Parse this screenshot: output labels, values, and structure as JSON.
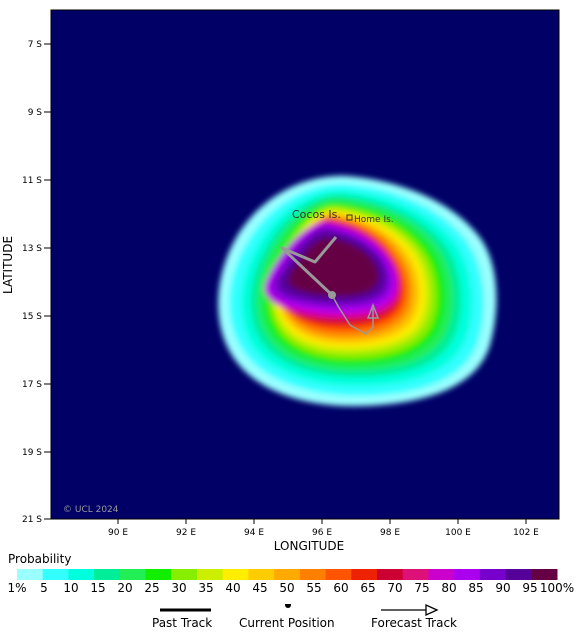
{
  "map": {
    "y_axis_title": "LATITUDE",
    "x_axis_title": "LONGITUDE",
    "lat_ticks": [
      "7 S",
      "9 S",
      "11 S",
      "13 S",
      "15 S",
      "17 S",
      "19 S",
      "21 S"
    ],
    "lon_ticks": [
      "90 E",
      "92 E",
      "94 E",
      "96 E",
      "98 E",
      "100 E",
      "102 E"
    ],
    "places": {
      "cocos": "Cocos Is.",
      "home": "Home Is."
    },
    "copyright": "© UCL 2024",
    "background_color": "#000066"
  },
  "legend": {
    "title": "Probability",
    "labels": [
      "1%",
      "5",
      "10",
      "15",
      "20",
      "25",
      "30",
      "35",
      "40",
      "45",
      "50",
      "55",
      "60",
      "65",
      "70",
      "75",
      "80",
      "85",
      "90",
      "95",
      "100%"
    ],
    "colors": [
      "#99ffff",
      "#33ffff",
      "#00ffdd",
      "#00ee99",
      "#22ee55",
      "#11ee00",
      "#88ee00",
      "#ccee00",
      "#ffee00",
      "#ffcc00",
      "#ffaa00",
      "#ff8000",
      "#ff5500",
      "#ee2200",
      "#cc0033",
      "#dd1177",
      "#cc00cc",
      "#aa00ee",
      "#7700cc",
      "#550099",
      "#660044"
    ]
  },
  "key": {
    "past_track": "Past Track",
    "current_position": "Current Position",
    "forecast_track": "Forecast Track"
  }
}
